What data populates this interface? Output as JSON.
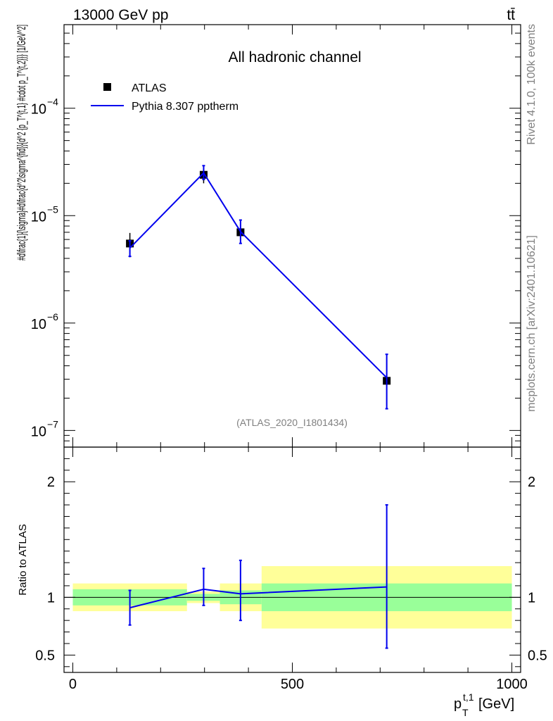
{
  "header": {
    "left": "13000 GeV pp",
    "right": "tt̄"
  },
  "side_labels": {
    "rivet": "Rivet 4.1.0,  100k events",
    "mcplots": "mcplots.cern.ch [arXiv:2401.10621]"
  },
  "chart_data": {
    "type": "line",
    "title": "All hadronic channel",
    "analysis_id": "(ATLAS_2020_I1801434)",
    "xlabel": "p_T^{t,1} [GeV]",
    "ylabel": "#d\\frac{1}{\\sigma}#d\\frac{d^2\\sigma^{fid}}{d^2 {p_T^{t,1} #cdot p_T^{t,2}}} [1/GeV^2]",
    "ylabel_ratio": "Ratio to ATLAS",
    "xlim": [
      -20,
      1020
    ],
    "ylim": [
      7e-08,
      0.0006
    ],
    "ylim_ratio": [
      0.35,
      2.3
    ],
    "x_ticks": [
      {
        "value": 0,
        "label": "0"
      },
      {
        "value": 500,
        "label": "500"
      },
      {
        "value": 1000,
        "label": "1000"
      }
    ],
    "y_ticks": [
      {
        "value": 1e-07,
        "label": "10",
        "exp": "−7"
      },
      {
        "value": 1e-06,
        "label": "10",
        "exp": "−6"
      },
      {
        "value": 1e-05,
        "label": "10",
        "exp": "−5"
      },
      {
        "value": 0.0001,
        "label": "10",
        "exp": "−4"
      }
    ],
    "ratio_ticks": [
      {
        "value": 0.5,
        "label": "0.5"
      },
      {
        "value": 1,
        "label": "1"
      },
      {
        "value": 2,
        "label": "2"
      }
    ],
    "legend": [
      {
        "name": "ATLAS",
        "style": "marker",
        "color": "#000000"
      },
      {
        "name": "Pythia 8.307 pptherm",
        "style": "line",
        "color": "#0000ee"
      }
    ],
    "bins": [
      {
        "xlo": 0,
        "xhi": 260
      },
      {
        "xlo": 260,
        "xhi": 335
      },
      {
        "xlo": 335,
        "xhi": 430
      },
      {
        "xlo": 430,
        "xhi": 1000
      }
    ],
    "data": {
      "name": "ATLAS",
      "x": [
        130,
        298,
        382,
        715
      ],
      "y": [
        5.5e-06,
        2.4e-05,
        7e-06,
        2.9e-07
      ],
      "yerr_lo": [
        1.4e-06,
        4e-06,
        1.4e-06,
        1.2e-07
      ],
      "yerr_hi": [
        1.4e-06,
        4.5e-06,
        1.7e-06,
        1.9e-07
      ],
      "stat_band_rel": [
        0.07,
        0.03,
        0.06,
        0.12
      ],
      "total_band_rel": [
        0.12,
        0.05,
        0.12,
        0.27
      ]
    },
    "mc": {
      "name": "Pythia 8.307 pptherm",
      "x": [
        130,
        298,
        382,
        715
      ],
      "y": [
        5e-06,
        2.5e-05,
        7.1e-06,
        3.1e-07
      ],
      "ratio": [
        0.91,
        1.07,
        1.03,
        1.09
      ],
      "ratio_err_lo": [
        0.15,
        0.14,
        0.23,
        0.53
      ],
      "ratio_err_hi": [
        0.15,
        0.18,
        0.29,
        0.71
      ]
    },
    "colors": {
      "mc": "#0000ee",
      "band_outer": "#ffff99",
      "band_inner": "#99ff99",
      "frame": "#000000",
      "grey_text": "#808080"
    }
  }
}
